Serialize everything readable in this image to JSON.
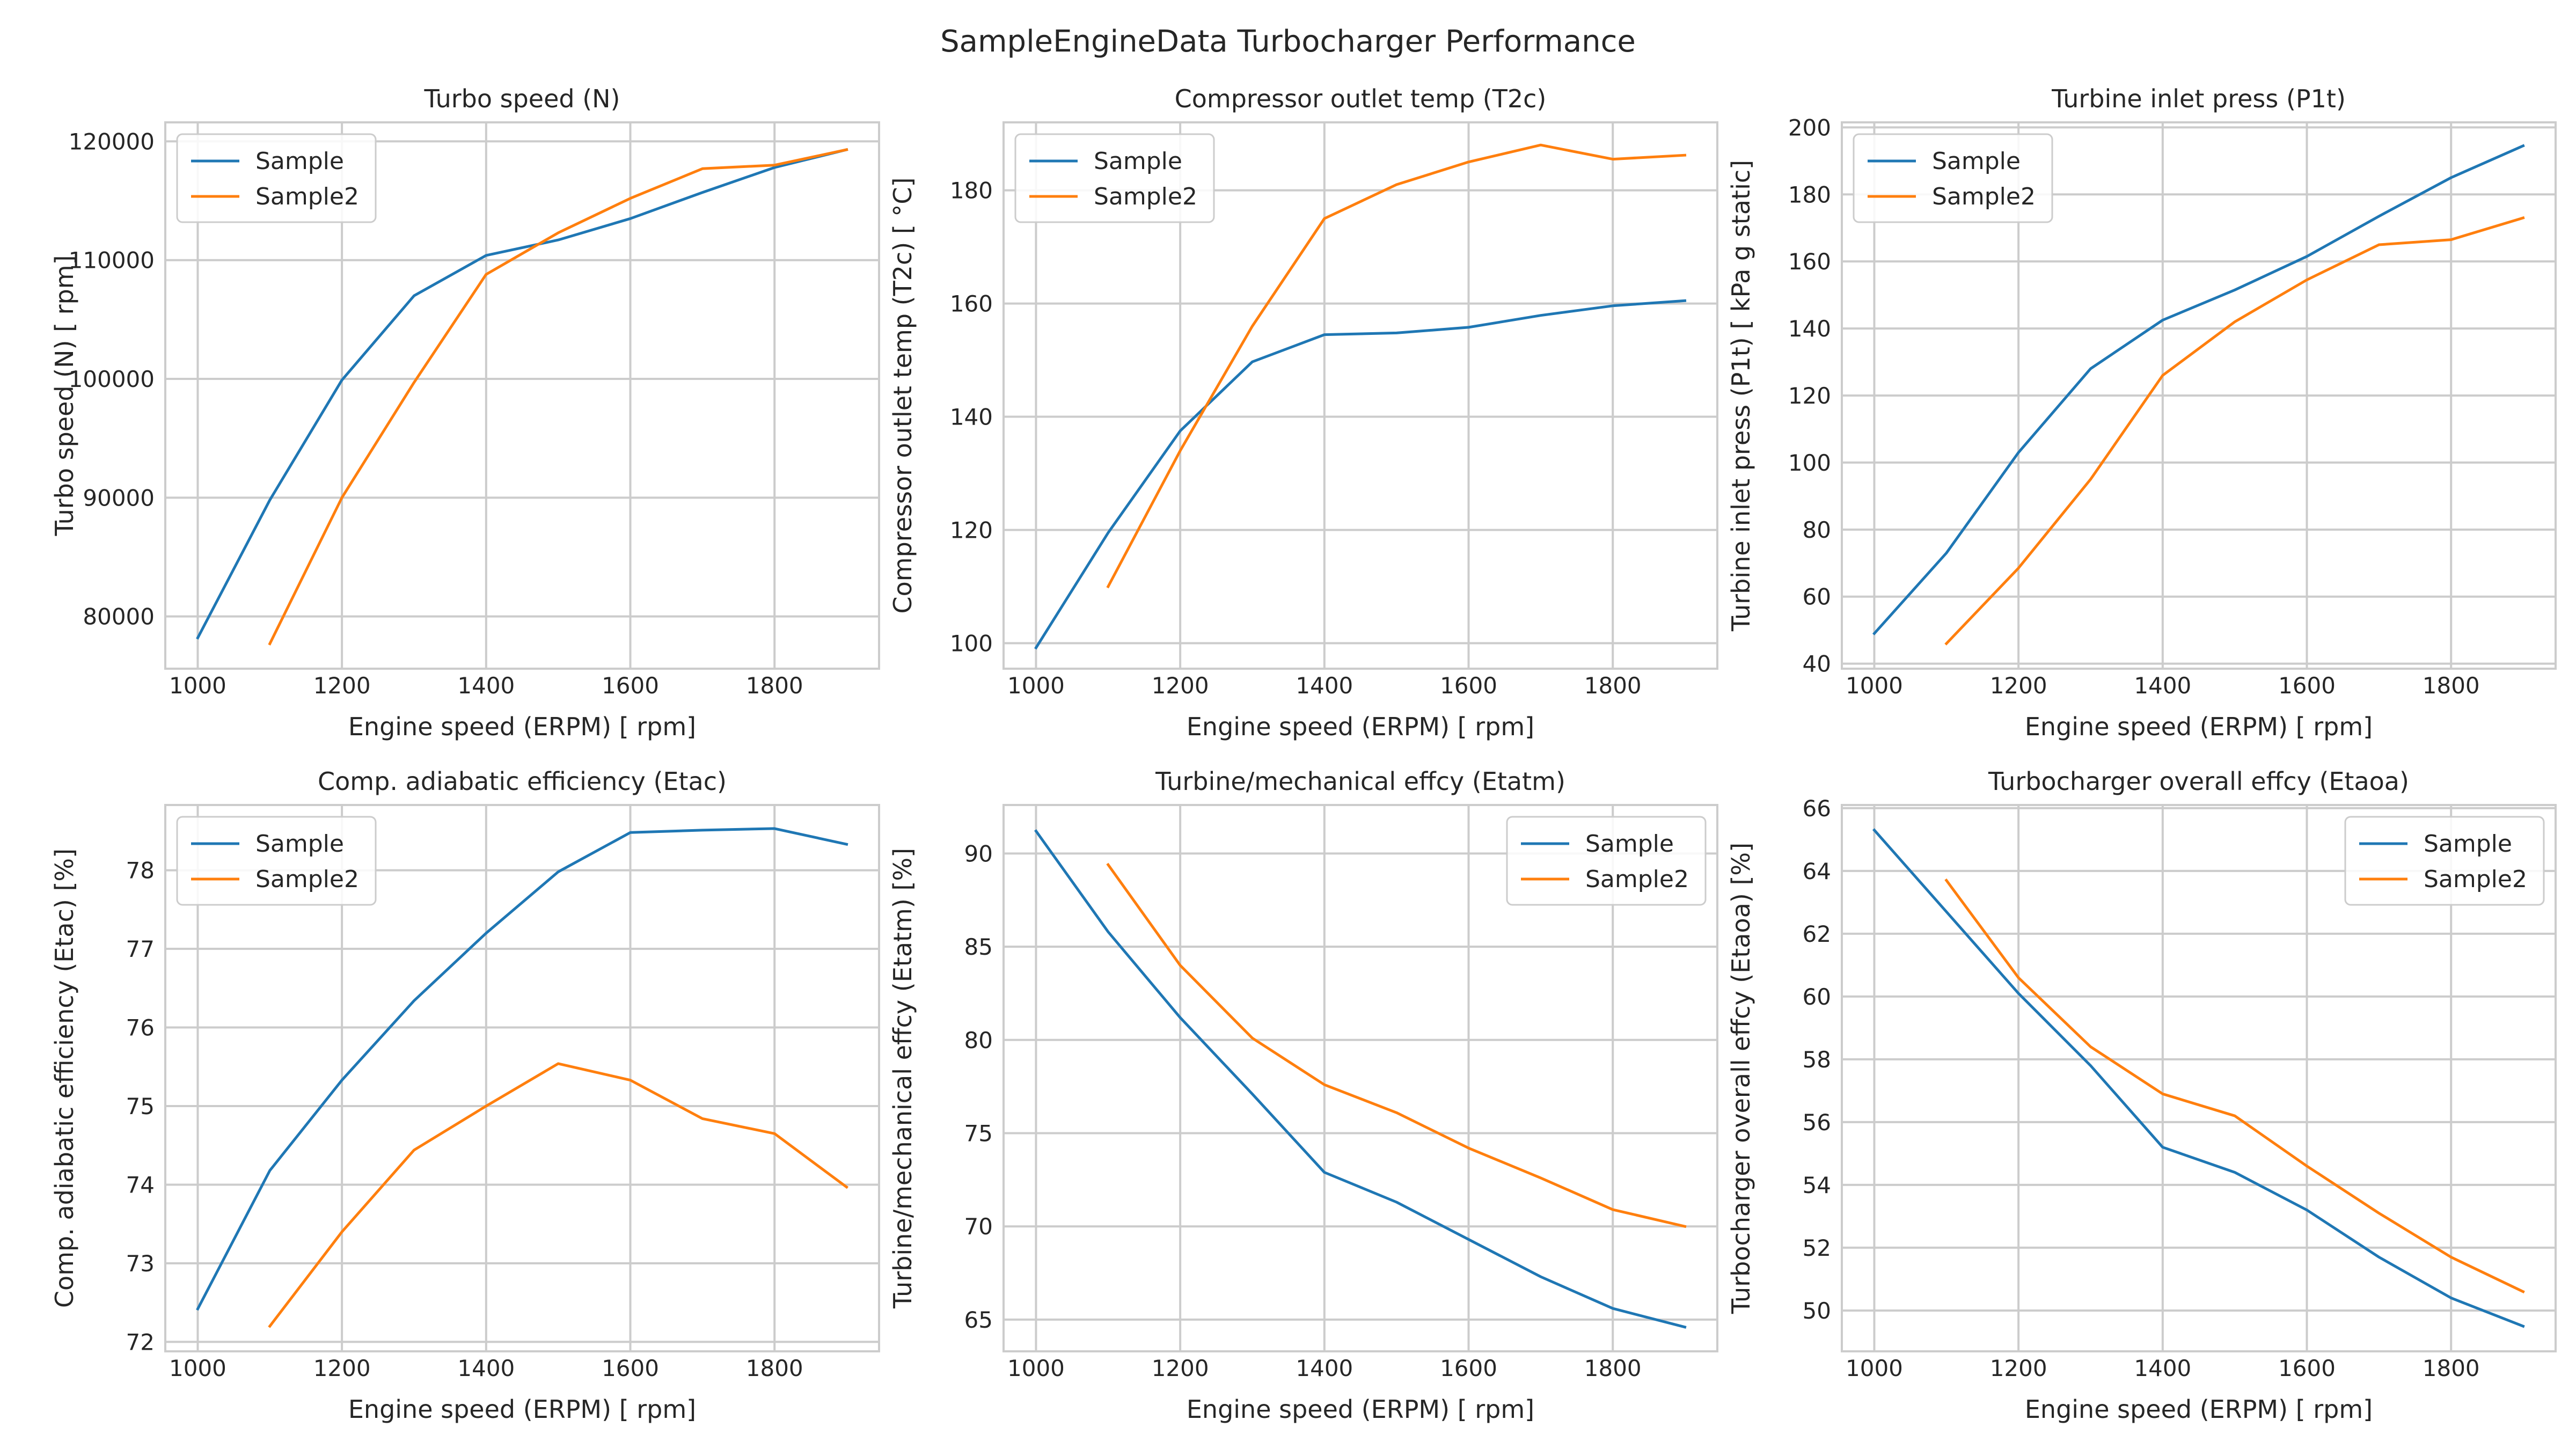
{
  "figure": {
    "title": "SampleEngineData Turbocharger Performance"
  },
  "colors": {
    "series": [
      "#1f77b4",
      "#ff7f0e"
    ],
    "grid": "#cccccc",
    "spine": "#cccccc",
    "text": "#262626"
  },
  "chart_data": [
    {
      "type": "line",
      "title": "Turbo speed (N)",
      "xlabel": "Engine speed (ERPM) [ rpm]",
      "ylabel": "Turbo speed (N) [ rpm]",
      "xlim": [
        955,
        1945
      ],
      "ylim": [
        75600,
        121600
      ],
      "xticks": [
        1000,
        1200,
        1400,
        1600,
        1800
      ],
      "yticks": [
        80000,
        90000,
        100000,
        110000,
        120000
      ],
      "legend": "top-left",
      "grid": true,
      "series": [
        {
          "name": "Sample",
          "x": [
            1000,
            1100,
            1200,
            1300,
            1400,
            1500,
            1600,
            1700,
            1800,
            1900
          ],
          "y": [
            78200,
            89800,
            99900,
            107000,
            110400,
            111700,
            113500,
            115700,
            117800,
            119300
          ]
        },
        {
          "name": "Sample2",
          "x": [
            1100,
            1200,
            1300,
            1400,
            1500,
            1600,
            1700,
            1800,
            1900
          ],
          "y": [
            77700,
            90000,
            99700,
            108800,
            112300,
            115200,
            117700,
            118000,
            119300
          ]
        }
      ]
    },
    {
      "type": "line",
      "title": "Compressor outlet temp (T2c)",
      "xlabel": "Engine speed (ERPM) [ rpm]",
      "ylabel": "Compressor outlet temp (T2c) [ °C]",
      "xlim": [
        955,
        1945
      ],
      "ylim": [
        95.5,
        192
      ],
      "xticks": [
        1000,
        1200,
        1400,
        1600,
        1800
      ],
      "yticks": [
        100,
        120,
        140,
        160,
        180
      ],
      "legend": "top-left",
      "grid": true,
      "series": [
        {
          "name": "Sample",
          "x": [
            1000,
            1100,
            1200,
            1300,
            1400,
            1500,
            1600,
            1700,
            1800,
            1900
          ],
          "y": [
            99.2,
            119.5,
            137.5,
            149.7,
            154.5,
            154.8,
            155.8,
            157.9,
            159.6,
            160.5
          ]
        },
        {
          "name": "Sample2",
          "x": [
            1100,
            1200,
            1300,
            1400,
            1500,
            1600,
            1700,
            1800,
            1900
          ],
          "y": [
            110,
            134,
            156,
            175,
            181,
            185,
            188,
            185.5,
            186.2
          ]
        }
      ]
    },
    {
      "type": "line",
      "title": "Turbine inlet press (P1t)",
      "xlabel": "Engine speed (ERPM) [ rpm]",
      "ylabel": "Turbine inlet press (P1t) [ kPa g static]",
      "xlim": [
        955,
        1945
      ],
      "ylim": [
        38.5,
        201.5
      ],
      "xticks": [
        1000,
        1200,
        1400,
        1600,
        1800
      ],
      "yticks": [
        40,
        60,
        80,
        100,
        120,
        140,
        160,
        180,
        200
      ],
      "legend": "top-left",
      "grid": true,
      "series": [
        {
          "name": "Sample",
          "x": [
            1000,
            1100,
            1200,
            1300,
            1400,
            1500,
            1600,
            1700,
            1800,
            1900
          ],
          "y": [
            49,
            73,
            103,
            128,
            142.5,
            151.5,
            161.5,
            173.5,
            185,
            194.5
          ]
        },
        {
          "name": "Sample2",
          "x": [
            1100,
            1200,
            1300,
            1400,
            1500,
            1600,
            1700,
            1800,
            1900
          ],
          "y": [
            46,
            68.5,
            95,
            126,
            142,
            154.5,
            165,
            166.5,
            173
          ]
        }
      ]
    },
    {
      "type": "line",
      "title": "Comp. adiabatic efficiency (Etac)",
      "xlabel": "Engine speed (ERPM) [ rpm]",
      "ylabel": "Comp. adiabatic efficiency (Etac) [%]",
      "xlim": [
        955,
        1945
      ],
      "ylim": [
        71.88,
        78.83
      ],
      "xticks": [
        1000,
        1200,
        1400,
        1600,
        1800
      ],
      "yticks": [
        72,
        73,
        74,
        75,
        76,
        77,
        78
      ],
      "legend": "top-left",
      "grid": true,
      "series": [
        {
          "name": "Sample",
          "x": [
            1000,
            1100,
            1200,
            1300,
            1400,
            1500,
            1600,
            1700,
            1800,
            1900
          ],
          "y": [
            72.42,
            74.18,
            75.33,
            76.34,
            77.2,
            77.98,
            78.48,
            78.51,
            78.53,
            78.33
          ]
        },
        {
          "name": "Sample2",
          "x": [
            1100,
            1200,
            1300,
            1400,
            1500,
            1600,
            1700,
            1800,
            1900
          ],
          "y": [
            72.2,
            73.4,
            74.44,
            75.0,
            75.54,
            75.33,
            74.84,
            74.65,
            73.97
          ]
        }
      ]
    },
    {
      "type": "line",
      "title": "Turbine/mechanical effcy (Etatm)",
      "xlabel": "Engine speed (ERPM) [ rpm]",
      "ylabel": "Turbine/mechanical effcy (Etatm) [%]",
      "xlim": [
        955,
        1945
      ],
      "ylim": [
        63.3,
        92.6
      ],
      "xticks": [
        1000,
        1200,
        1400,
        1600,
        1800
      ],
      "yticks": [
        65,
        70,
        75,
        80,
        85,
        90
      ],
      "legend": "top-right",
      "grid": true,
      "series": [
        {
          "name": "Sample",
          "x": [
            1000,
            1100,
            1200,
            1300,
            1400,
            1500,
            1600,
            1700,
            1800,
            1900
          ],
          "y": [
            91.2,
            85.8,
            81.2,
            77.1,
            72.9,
            71.3,
            69.3,
            67.3,
            65.6,
            64.6
          ]
        },
        {
          "name": "Sample2",
          "x": [
            1100,
            1200,
            1300,
            1400,
            1500,
            1600,
            1700,
            1800,
            1900
          ],
          "y": [
            89.4,
            84.0,
            80.1,
            77.6,
            76.1,
            74.2,
            72.6,
            70.9,
            70.0
          ]
        }
      ]
    },
    {
      "type": "line",
      "title": "Turbocharger overall effcy (Etaoa)",
      "xlabel": "Engine speed (ERPM) [ rpm]",
      "ylabel": "Turbocharger overall effcy (Etaoa) [%]",
      "xlim": [
        955,
        1945
      ],
      "ylim": [
        48.7,
        66.1
      ],
      "xticks": [
        1000,
        1200,
        1400,
        1600,
        1800
      ],
      "yticks": [
        50,
        52,
        54,
        56,
        58,
        60,
        62,
        64,
        66
      ],
      "legend": "top-right",
      "grid": true,
      "series": [
        {
          "name": "Sample",
          "x": [
            1000,
            1100,
            1200,
            1300,
            1400,
            1500,
            1600,
            1700,
            1800,
            1900
          ],
          "y": [
            65.3,
            62.7,
            60.1,
            57.8,
            55.2,
            54.4,
            53.2,
            51.7,
            50.4,
            49.5
          ]
        },
        {
          "name": "Sample2",
          "x": [
            1100,
            1200,
            1300,
            1400,
            1500,
            1600,
            1700,
            1800,
            1900
          ],
          "y": [
            63.7,
            60.6,
            58.4,
            56.9,
            56.2,
            54.6,
            53.1,
            51.7,
            50.6
          ]
        }
      ]
    }
  ]
}
